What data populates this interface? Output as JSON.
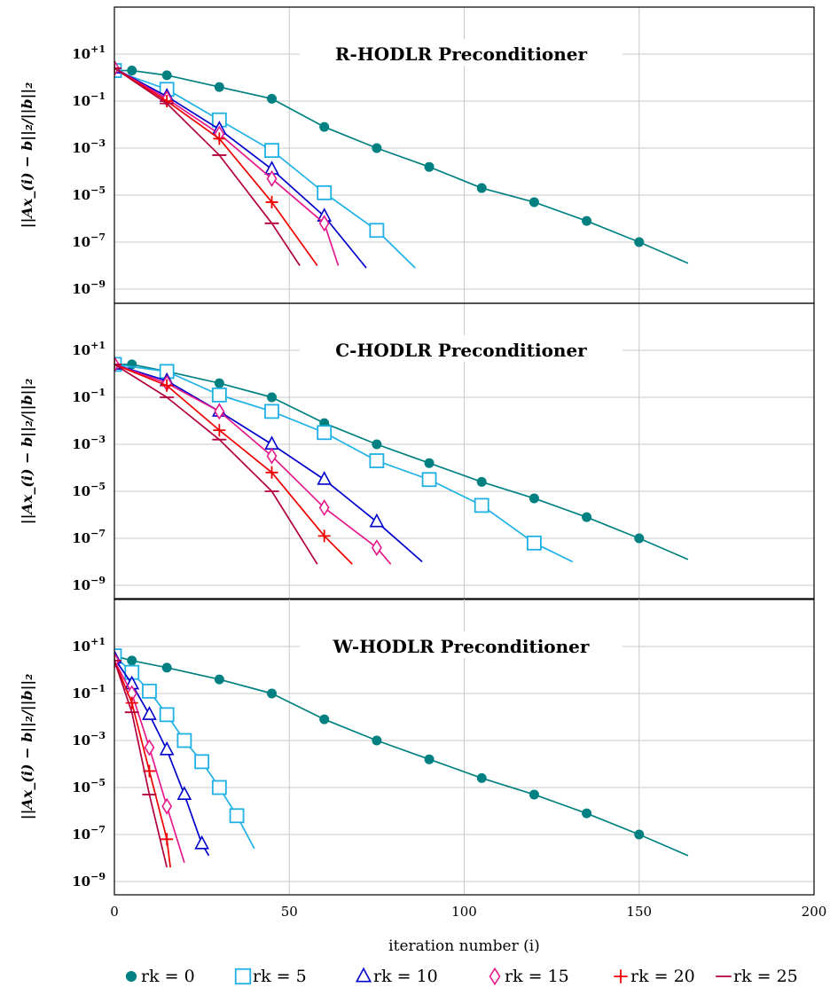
{
  "chart_data": {
    "type": "line",
    "xlabel": "iteration number (i)",
    "ylabel": "||Ax_(i) − b||₂/||b||₂",
    "xlim": [
      0,
      200
    ],
    "xticks": [
      0,
      50,
      100,
      150,
      200
    ],
    "y_scale": "log",
    "ylim_exponent": [
      -10,
      2
    ],
    "yticks_exponent": [
      1,
      -1,
      -3,
      -5,
      -7,
      -9
    ],
    "grid": true,
    "legend_position": "bottom",
    "series_styles": [
      {
        "name": "rk = 0",
        "color": "#008080",
        "marker": "circle"
      },
      {
        "name": "rk = 5",
        "color": "#1fb1e6",
        "marker": "square"
      },
      {
        "name": "rk = 10",
        "color": "#0000cc",
        "marker": "triangle"
      },
      {
        "name": "rk = 15",
        "color": "#e6198c",
        "marker": "diamond"
      },
      {
        "name": "rk = 20",
        "color": "#f00000",
        "marker": "plus"
      },
      {
        "name": "rk = 25",
        "color": "#b3003c",
        "marker": "minus"
      }
    ],
    "panels": [
      {
        "title": "R-HODLR Preconditioner",
        "series": [
          {
            "name": "rk = 0",
            "x": [
              0,
              5,
              15,
              30,
              45,
              60,
              75,
              90,
              105,
              120,
              135,
              150,
              164
            ],
            "logy": [
              0.3,
              0.3,
              0.1,
              -0.4,
              -0.9,
              -2.1,
              -3.0,
              -3.8,
              -4.7,
              -5.3,
              -6.1,
              -7.0,
              -7.9
            ]
          },
          {
            "name": "rk = 5",
            "x": [
              0,
              15,
              30,
              45,
              60,
              75,
              86
            ],
            "logy": [
              0.3,
              -0.5,
              -1.8,
              -3.1,
              -4.9,
              -6.5,
              -8.1
            ]
          },
          {
            "name": "rk = 10",
            "x": [
              0,
              15,
              30,
              45,
              60,
              72
            ],
            "logy": [
              0.4,
              -0.8,
              -2.2,
              -3.9,
              -5.9,
              -8.1
            ]
          },
          {
            "name": "rk = 15",
            "x": [
              0,
              15,
              30,
              45,
              60,
              64
            ],
            "logy": [
              0.4,
              -0.9,
              -2.4,
              -4.3,
              -6.2,
              -8.0
            ]
          },
          {
            "name": "rk = 20",
            "x": [
              0,
              15,
              30,
              45,
              58
            ],
            "logy": [
              0.4,
              -1.0,
              -2.6,
              -5.3,
              -8.0
            ]
          },
          {
            "name": "rk = 25",
            "x": [
              0,
              15,
              30,
              45,
              53
            ],
            "logy": [
              0.4,
              -1.1,
              -3.3,
              -6.2,
              -8.0
            ]
          }
        ]
      },
      {
        "title": "C-HODLR Preconditioner",
        "series": [
          {
            "name": "rk = 0",
            "x": [
              0,
              5,
              15,
              30,
              45,
              60,
              75,
              90,
              105,
              120,
              135,
              150,
              164
            ],
            "logy": [
              0.4,
              0.4,
              0.1,
              -0.4,
              -1.0,
              -2.1,
              -3.0,
              -3.8,
              -4.6,
              -5.3,
              -6.1,
              -7.0,
              -7.9
            ]
          },
          {
            "name": "rk = 5",
            "x": [
              0,
              15,
              30,
              45,
              60,
              75,
              90,
              105,
              120,
              131
            ],
            "logy": [
              0.4,
              0.1,
              -0.9,
              -1.6,
              -2.5,
              -3.7,
              -4.5,
              -5.6,
              -7.2,
              -8.0
            ]
          },
          {
            "name": "rk = 10",
            "x": [
              0,
              15,
              30,
              45,
              60,
              75,
              88
            ],
            "logy": [
              0.4,
              -0.3,
              -1.6,
              -3.0,
              -4.5,
              -6.3,
              -8.0
            ]
          },
          {
            "name": "rk = 15",
            "x": [
              0,
              15,
              30,
              45,
              60,
              75,
              79
            ],
            "logy": [
              0.4,
              -0.4,
              -1.6,
              -3.5,
              -5.7,
              -7.4,
              -8.1
            ]
          },
          {
            "name": "rk = 20",
            "x": [
              0,
              15,
              30,
              45,
              60,
              68
            ],
            "logy": [
              0.4,
              -0.5,
              -2.4,
              -4.2,
              -6.9,
              -8.1
            ]
          },
          {
            "name": "rk = 25",
            "x": [
              0,
              15,
              30,
              45,
              58
            ],
            "logy": [
              0.4,
              -1.0,
              -2.8,
              -5.0,
              -8.1
            ]
          }
        ]
      },
      {
        "title": "W-HODLR Preconditioner",
        "series": [
          {
            "name": "rk = 0",
            "x": [
              0,
              5,
              15,
              30,
              45,
              60,
              75,
              90,
              105,
              120,
              135,
              150,
              164
            ],
            "logy": [
              0.6,
              0.4,
              0.1,
              -0.4,
              -1.0,
              -2.1,
              -3.0,
              -3.8,
              -4.6,
              -5.3,
              -6.1,
              -7.0,
              -7.9
            ]
          },
          {
            "name": "rk = 5",
            "x": [
              0,
              5,
              10,
              15,
              20,
              25,
              30,
              35,
              40
            ],
            "logy": [
              0.6,
              -0.1,
              -0.9,
              -1.9,
              -3.0,
              -3.9,
              -5.0,
              -6.2,
              -7.6
            ]
          },
          {
            "name": "rk = 10",
            "x": [
              0,
              5,
              10,
              15,
              20,
              25,
              27
            ],
            "logy": [
              0.5,
              -0.6,
              -1.9,
              -3.4,
              -5.3,
              -7.4,
              -7.9
            ]
          },
          {
            "name": "rk = 15",
            "x": [
              0,
              5,
              10,
              15,
              20
            ],
            "logy": [
              0.4,
              -1.0,
              -3.3,
              -5.8,
              -8.2
            ]
          },
          {
            "name": "rk = 20",
            "x": [
              0,
              5,
              10,
              15,
              16
            ],
            "logy": [
              0.4,
              -1.4,
              -4.3,
              -7.2,
              -8.4
            ]
          },
          {
            "name": "rk = 25",
            "x": [
              0,
              5,
              10,
              15
            ],
            "logy": [
              0.4,
              -1.8,
              -5.3,
              -8.4
            ]
          }
        ]
      }
    ]
  }
}
